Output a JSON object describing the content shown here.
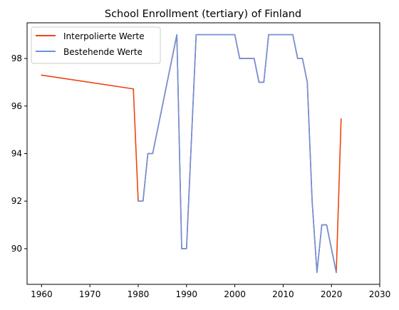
{
  "chart_data": {
    "type": "line",
    "title": "School Enrollment (tertiary) of Finland",
    "xlabel": "",
    "ylabel": "",
    "xlim": [
      1957.0,
      2030
    ],
    "ylim": [
      88.5,
      99.5
    ],
    "xticks": [
      1960,
      1970,
      1980,
      1990,
      2000,
      2010,
      2020,
      2030
    ],
    "yticks": [
      90,
      92,
      94,
      96,
      98
    ],
    "legend_position": "upper-left",
    "grid": false,
    "series": [
      {
        "name": "Interpolierte Werte",
        "color": "#ee4411",
        "points": [
          [
            1960,
            97.3
          ],
          [
            1979,
            96.72
          ],
          [
            1980,
            92
          ],
          [
            1981,
            92
          ],
          [
            1982,
            94
          ],
          [
            1983,
            94
          ],
          [
            1988,
            99
          ],
          [
            1989,
            90
          ],
          [
            1990,
            90
          ],
          [
            1992,
            99
          ],
          [
            2000,
            99
          ],
          [
            2001,
            98
          ],
          [
            2004,
            98
          ],
          [
            2005,
            97
          ],
          [
            2006,
            97
          ],
          [
            2007,
            99
          ],
          [
            2012,
            99
          ],
          [
            2013,
            98
          ],
          [
            2014,
            98
          ],
          [
            2015,
            97
          ],
          [
            2016,
            92
          ],
          [
            2017,
            89
          ],
          [
            2018,
            91
          ],
          [
            2019,
            91
          ],
          [
            2021,
            89
          ],
          [
            2022,
            95.45
          ]
        ]
      },
      {
        "name": "Bestehende Werte",
        "color": "#6a93e0",
        "points": [
          [
            1980,
            92
          ],
          [
            1981,
            92
          ],
          [
            1982,
            94
          ],
          [
            1983,
            94
          ],
          [
            1988,
            99
          ],
          [
            1989,
            90
          ],
          [
            1990,
            90
          ],
          [
            1992,
            99
          ],
          [
            2000,
            99
          ],
          [
            2001,
            98
          ],
          [
            2004,
            98
          ],
          [
            2005,
            97
          ],
          [
            2006,
            97
          ],
          [
            2007,
            99
          ],
          [
            2012,
            99
          ],
          [
            2013,
            98
          ],
          [
            2014,
            98
          ],
          [
            2015,
            97
          ],
          [
            2016,
            92
          ],
          [
            2017,
            89
          ],
          [
            2018,
            91
          ],
          [
            2019,
            91
          ],
          [
            2021,
            89
          ]
        ]
      }
    ]
  }
}
